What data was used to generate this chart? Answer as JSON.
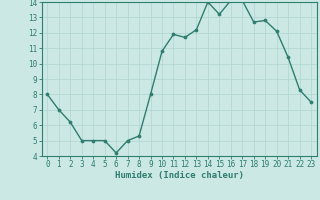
{
  "x": [
    0,
    1,
    2,
    3,
    4,
    5,
    6,
    7,
    8,
    9,
    10,
    11,
    12,
    13,
    14,
    15,
    16,
    17,
    18,
    19,
    20,
    21,
    22,
    23
  ],
  "y": [
    8,
    7,
    6.2,
    5,
    5,
    5,
    4.2,
    5,
    5.3,
    8,
    10.8,
    11.9,
    11.7,
    12.2,
    14,
    13.2,
    14.1,
    14.1,
    12.7,
    12.8,
    12.1,
    10.4,
    8.3,
    7.5
  ],
  "line_color": "#2e7d6e",
  "marker_color": "#2e7d6e",
  "bg_color": "#cbe8e5",
  "grid_color": "#afd4d0",
  "xlabel": "Humidex (Indice chaleur)",
  "ylim": [
    4,
    14
  ],
  "xlim_min": -0.5,
  "xlim_max": 23.5,
  "yticks": [
    4,
    5,
    6,
    7,
    8,
    9,
    10,
    11,
    12,
    13,
    14
  ],
  "xticks": [
    0,
    1,
    2,
    3,
    4,
    5,
    6,
    7,
    8,
    9,
    10,
    11,
    12,
    13,
    14,
    15,
    16,
    17,
    18,
    19,
    20,
    21,
    22,
    23
  ],
  "tick_label_fontsize": 5.5,
  "xlabel_fontsize": 6.5,
  "axis_color": "#2e7d6e",
  "spine_color": "#2e7d6e",
  "line_width": 1.0,
  "marker_size": 2.2
}
